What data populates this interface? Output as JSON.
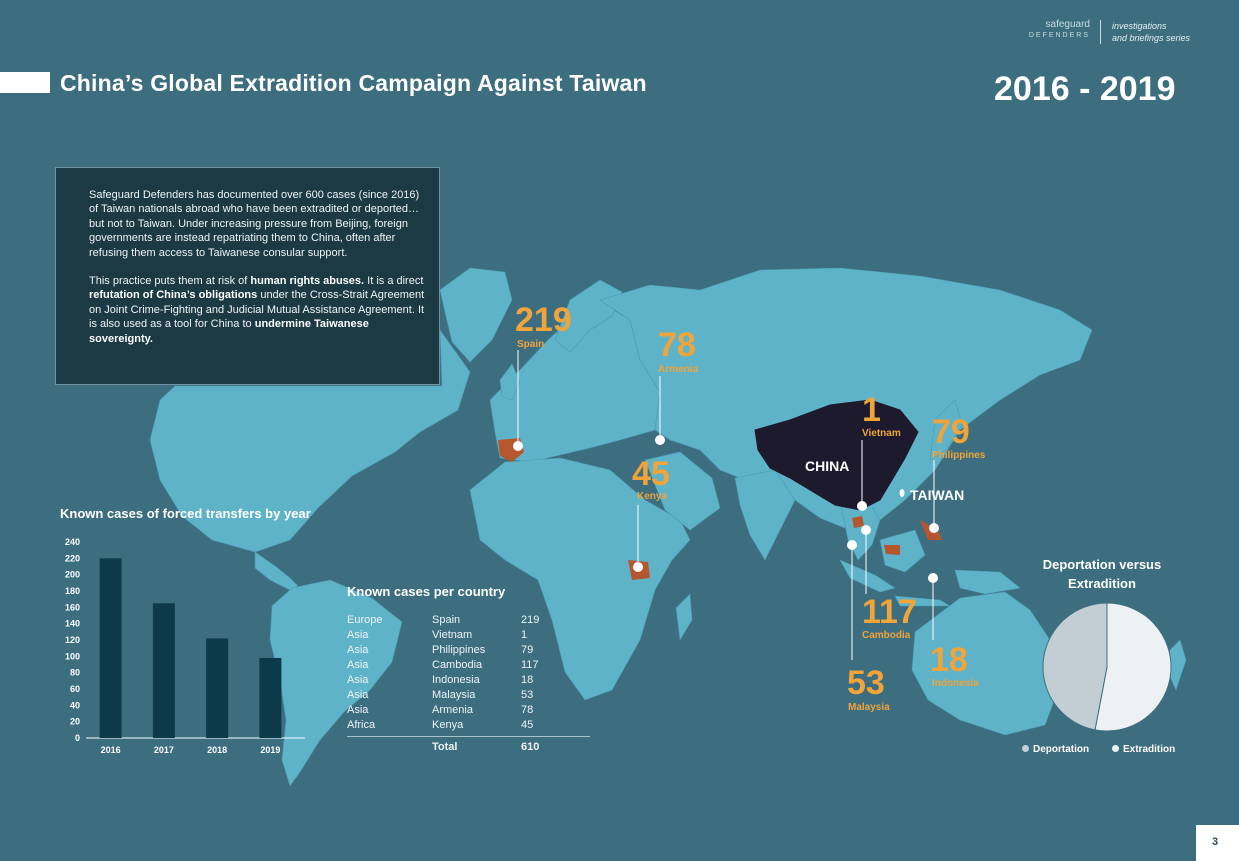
{
  "header": {
    "title": "China’s Global Extradition Campaign Against Taiwan",
    "years": "2016 - 2019",
    "brand_top": "safeguard",
    "brand_bottom": "DEFENDERS",
    "series_line1": "investigations",
    "series_line2": "and briefings series"
  },
  "intro": {
    "p1": "Safeguard Defenders has documented over 600 cases (since 2016) of Taiwan nationals abroad who have been extradited or deported… but not to Taiwan. Under increasing pressure from Beijing, foreign governments are instead repatriating them to China, often after refusing them access to Taiwanese consular support.",
    "p2_a": "This practice puts them at risk of ",
    "p2_b": "human rights abuses.",
    "p2_c": " It is a direct ",
    "p2_d": "refutation of China’s obligations",
    "p2_e": " under the Cross-Strait Agreement on Joint Crime-Fighting and Judicial Mutual Assistance Agreement. It is also used as a tool for China to ",
    "p2_f": "undermine Taiwanese sovereignty."
  },
  "map": {
    "china_label": "CHINA",
    "taiwan_label": "TAIWAN",
    "callouts": [
      {
        "name": "Spain",
        "value": "219"
      },
      {
        "name": "Armenia",
        "value": "78"
      },
      {
        "name": "Kenya",
        "value": "45"
      },
      {
        "name": "Vietnam",
        "value": "1"
      },
      {
        "name": "Philippines",
        "value": "79"
      },
      {
        "name": "Cambodia",
        "value": "117"
      },
      {
        "name": "Malaysia",
        "value": "53"
      },
      {
        "name": "Indonesia",
        "value": "18"
      }
    ]
  },
  "table": {
    "title": "Known cases per country",
    "rows": [
      {
        "region": "Europe",
        "country": "Spain",
        "count": "219"
      },
      {
        "region": "Asia",
        "country": "Vietnam",
        "count": "1"
      },
      {
        "region": "Asia",
        "country": "Philippines",
        "count": "79"
      },
      {
        "region": "Asia",
        "country": "Cambodia",
        "count": "117"
      },
      {
        "region": "Asia",
        "country": "Indonesia",
        "count": "18"
      },
      {
        "region": "Asia",
        "country": "Malaysia",
        "count": "53"
      },
      {
        "region": "Asia",
        "country": "Armenia",
        "count": "78"
      },
      {
        "region": "Africa",
        "country": "Kenya",
        "count": "45"
      }
    ],
    "total_label": "Total",
    "total_value": "610"
  },
  "pie": {
    "title_line1": "Deportation versus",
    "title_line2": "Extradition"
  },
  "page_number": "3",
  "colors": {
    "background": "#3d6e80",
    "land": "#5fb3c9",
    "accent": "#f0a43a",
    "bar": "#0c3a4a",
    "china": "#1e1a2e",
    "highlight": "#b5562e"
  },
  "chart_data": [
    {
      "type": "bar",
      "title": "Known cases of forced transfers by year",
      "categories": [
        "2016",
        "2017",
        "2018",
        "2019"
      ],
      "values": [
        220,
        165,
        122,
        98
      ],
      "ylim": [
        0,
        240
      ],
      "yticks": [
        0,
        20,
        40,
        60,
        80,
        100,
        120,
        140,
        160,
        180,
        200,
        220,
        240
      ],
      "grid": false
    },
    {
      "type": "pie",
      "title": "Deportation versus Extradition",
      "labels": [
        "Deportation",
        "Extradition"
      ],
      "values": [
        47,
        53
      ],
      "colors": [
        "#c2ced4",
        "#eef1f3"
      ],
      "legend": "bottom"
    }
  ]
}
